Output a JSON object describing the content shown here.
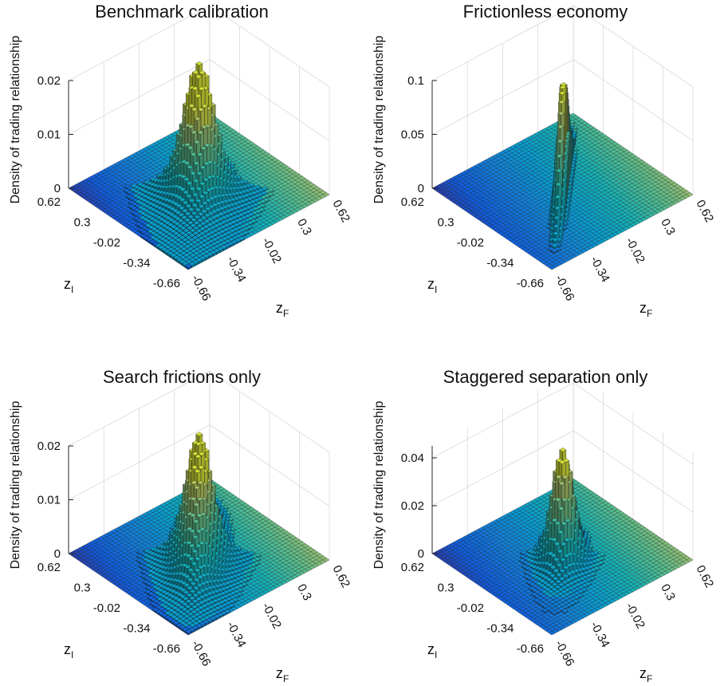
{
  "figure": {
    "panels": [
      {
        "title": "Benchmark calibration"
      },
      {
        "title": "Frictionless economy"
      },
      {
        "title": "Search frictions only"
      },
      {
        "title": "Staggered separation only"
      }
    ]
  },
  "chart_data": [
    {
      "type": "surface3d",
      "title": "Benchmark calibration",
      "zlabel": "Density of trading relationship",
      "xlabel": "z_F",
      "ylabel": "z_I",
      "x_ticks": [
        "-0.66",
        "-0.34",
        "-0.02",
        "0.3",
        "0.62"
      ],
      "y_ticks": [
        "0.62",
        "0.3",
        "-0.02",
        "-0.34",
        "-0.66"
      ],
      "z_ticks": [
        "0",
        "0.01",
        "0.02"
      ],
      "xlim": [
        -0.66,
        0.62
      ],
      "ylim": [
        -0.66,
        0.62
      ],
      "zlim": [
        0,
        0.02
      ],
      "peak": {
        "z_F": 0.0,
        "z_I": 0.0,
        "density": 0.0175
      },
      "spread": {
        "along": 0.12,
        "across": 0.07,
        "tail": 0.006
      },
      "grid": true,
      "colormap": "parula"
    },
    {
      "type": "surface3d",
      "title": "Frictionless economy",
      "zlabel": "Density of trading relationship",
      "xlabel": "z_F",
      "ylabel": "z_I",
      "x_ticks": [
        "-0.66",
        "-0.34",
        "-0.02",
        "0.3",
        "0.62"
      ],
      "y_ticks": [
        "0.62",
        "0.3",
        "-0.02",
        "-0.34",
        "-0.66"
      ],
      "z_ticks": [
        "0",
        "0.05",
        "0.1"
      ],
      "xlim": [
        -0.66,
        0.62
      ],
      "ylim": [
        -0.66,
        0.62
      ],
      "zlim": [
        0,
        0.1
      ],
      "peak": {
        "z_F": 0.0,
        "z_I": 0.0,
        "density": 0.095
      },
      "spread": {
        "along": 0.2,
        "across": 0.015,
        "tail": 0.0
      },
      "grid": true,
      "colormap": "parula"
    },
    {
      "type": "surface3d",
      "title": "Search frictions only",
      "zlabel": "Density of trading relationship",
      "xlabel": "z_F",
      "ylabel": "z_I",
      "x_ticks": [
        "-0.66",
        "-0.34",
        "-0.02",
        "0.3",
        "0.62"
      ],
      "y_ticks": [
        "0.62",
        "0.3",
        "-0.02",
        "-0.34",
        "-0.66"
      ],
      "z_ticks": [
        "0",
        "0.01",
        "0.02"
      ],
      "xlim": [
        -0.66,
        0.62
      ],
      "ylim": [
        -0.66,
        0.62
      ],
      "zlim": [
        0,
        0.02
      ],
      "peak": {
        "z_F": 0.0,
        "z_I": 0.0,
        "density": 0.0175
      },
      "spread": {
        "along": 0.18,
        "across": 0.06,
        "tail": 0.005
      },
      "grid": true,
      "colormap": "parula"
    },
    {
      "type": "surface3d",
      "title": "Staggered separation only",
      "zlabel": "Density of trading relationship",
      "xlabel": "z_F",
      "ylabel": "z_I",
      "x_ticks": [
        "-0.66",
        "-0.34",
        "-0.02",
        "0.3",
        "0.62"
      ],
      "y_ticks": [
        "0.62",
        "0.3",
        "-0.02",
        "-0.34",
        "-0.66"
      ],
      "z_ticks": [
        "0",
        "0.02",
        "0.04"
      ],
      "xlim": [
        -0.66,
        0.62
      ],
      "ylim": [
        -0.66,
        0.62
      ],
      "zlim": [
        0,
        0.045
      ],
      "peak": {
        "z_F": 0.0,
        "z_I": 0.0,
        "density": 0.04
      },
      "spread": {
        "along": 0.1,
        "across": 0.05,
        "tail": 0.004
      },
      "grid": true,
      "colormap": "parula"
    }
  ]
}
